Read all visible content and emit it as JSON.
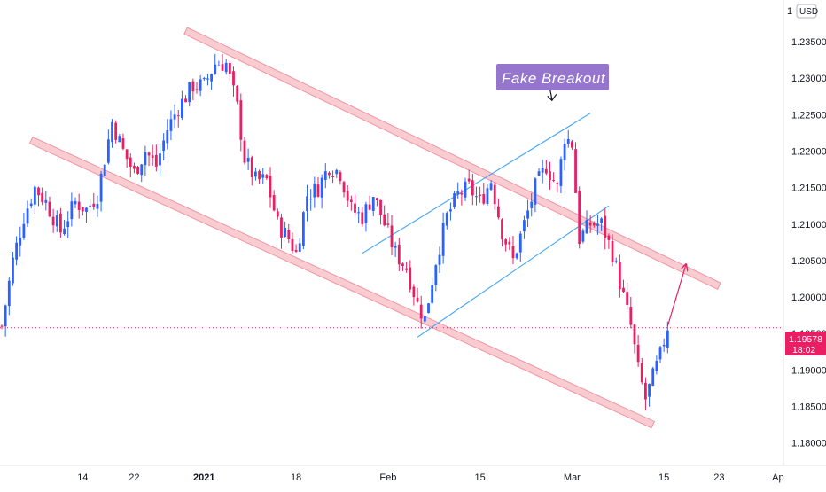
{
  "header": {
    "currency_label": "USD",
    "top_right_partial": "1"
  },
  "annotation": {
    "label": "Fake Breakout",
    "arrow_glyph": "⇩"
  },
  "price_badge": {
    "price": "1.19578",
    "countdown": "18:02"
  },
  "colors": {
    "up": "#2962ff",
    "down": "#e91e63",
    "channel_fill": "#f8c7cc",
    "channel_stroke": "#f08a98",
    "inner_channel": "#42a5f5",
    "annotation_bg": "#9575cd",
    "price_badge_bg": "#e91e63"
  },
  "chart_data": {
    "type": "candlestick",
    "y_ticks": [
      "1.23500",
      "1.23000",
      "1.22500",
      "1.22000",
      "1.21500",
      "1.21000",
      "1.20500",
      "1.20000",
      "1.19500",
      "1.19000",
      "1.18500",
      "1.18000"
    ],
    "ylim": [
      1.1785,
      1.2395
    ],
    "x_ticks": [
      "14",
      "22",
      "2021",
      "18",
      "Feb",
      "15",
      "Mar",
      "15",
      "23",
      "Ap"
    ],
    "x_tick_index": [
      22,
      36,
      55,
      80,
      105,
      130,
      155,
      180,
      195,
      211
    ],
    "xlim": [
      0,
      212
    ],
    "current_price": 1.19578,
    "close_path": [
      [
        0,
        1.196
      ],
      [
        3,
        1.205
      ],
      [
        6,
        1.211
      ],
      [
        9,
        1.215
      ],
      [
        12,
        1.213
      ],
      [
        16,
        1.209
      ],
      [
        20,
        1.213
      ],
      [
        23,
        1.212
      ],
      [
        26,
        1.214
      ],
      [
        30,
        1.224
      ],
      [
        33,
        1.22
      ],
      [
        36,
        1.217
      ],
      [
        39,
        1.22
      ],
      [
        42,
        1.218
      ],
      [
        45,
        1.223
      ],
      [
        48,
        1.226
      ],
      [
        52,
        1.229
      ],
      [
        55,
        1.229
      ],
      [
        58,
        1.232
      ],
      [
        61,
        1.232
      ],
      [
        64,
        1.226
      ],
      [
        66,
        1.219
      ],
      [
        69,
        1.216
      ],
      [
        72,
        1.216
      ],
      [
        75,
        1.21
      ],
      [
        78,
        1.208
      ],
      [
        80,
        1.206
      ],
      [
        83,
        1.214
      ],
      [
        86,
        1.215
      ],
      [
        89,
        1.218
      ],
      [
        92,
        1.217
      ],
      [
        95,
        1.212
      ],
      [
        98,
        1.211
      ],
      [
        101,
        1.214
      ],
      [
        104,
        1.21
      ],
      [
        107,
        1.206
      ],
      [
        110,
        1.204
      ],
      [
        113,
        1.199
      ],
      [
        115,
        1.197
      ],
      [
        118,
        1.205
      ],
      [
        121,
        1.211
      ],
      [
        124,
        1.214
      ],
      [
        127,
        1.215
      ],
      [
        130,
        1.213
      ],
      [
        133,
        1.216
      ],
      [
        136,
        1.209
      ],
      [
        139,
        1.205
      ],
      [
        142,
        1.21
      ],
      [
        145,
        1.215
      ],
      [
        148,
        1.218
      ],
      [
        151,
        1.215
      ],
      [
        153,
        1.222
      ],
      [
        155,
        1.221
      ],
      [
        157,
        1.208
      ],
      [
        160,
        1.21
      ],
      [
        163,
        1.21
      ],
      [
        166,
        1.206
      ],
      [
        169,
        1.2
      ],
      [
        171,
        1.196
      ],
      [
        173,
        1.19
      ],
      [
        175,
        1.186
      ],
      [
        177,
        1.189
      ],
      [
        179,
        1.192
      ],
      [
        181,
        1.196
      ]
    ],
    "channels": {
      "upper_red": {
        "from": [
          50,
          1.2365
        ],
        "to": [
          195,
          1.2015
        ]
      },
      "lower_red": {
        "from": [
          8,
          1.2215
        ],
        "to": [
          177,
          1.1825
        ]
      },
      "blue_upper": {
        "from": [
          98,
          1.206
        ],
        "to": [
          160,
          1.2252
        ]
      },
      "blue_lower": {
        "from": [
          113,
          1.1945
        ],
        "to": [
          165,
          1.2125
        ]
      }
    },
    "projection_arrow": {
      "from": [
        181,
        1.196
      ],
      "to": [
        186,
        1.2045
      ]
    },
    "annotation_point": [
      151,
      1.225
    ]
  }
}
